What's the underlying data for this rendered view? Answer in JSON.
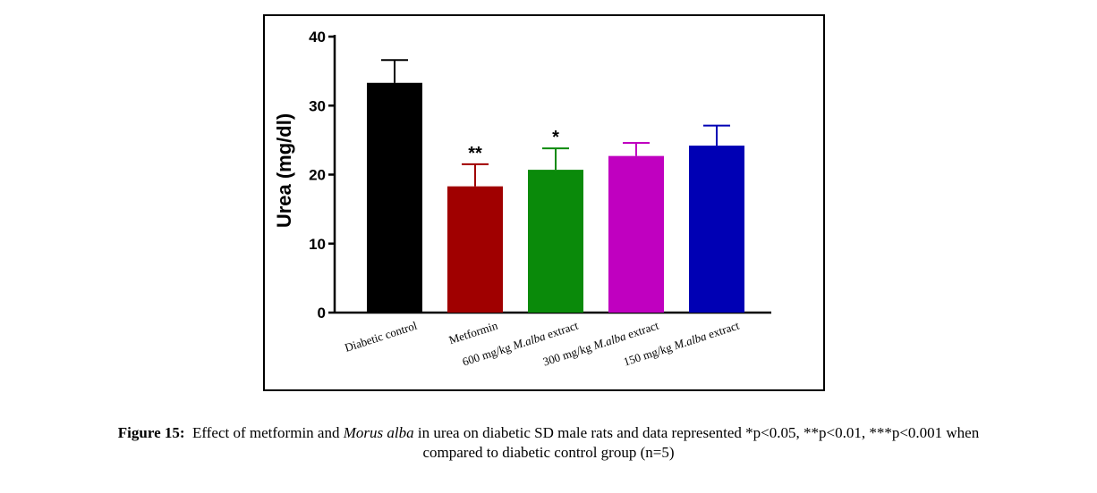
{
  "chart_data": {
    "type": "bar",
    "ylabel": "Urea (mg/dl)",
    "ylim": [
      0,
      40
    ],
    "yticks": [
      "0",
      "10",
      "20",
      "30",
      "40"
    ],
    "categories": [
      {
        "pre": "Diabetic control",
        "ital": "",
        "post": ""
      },
      {
        "pre": "Metformin",
        "ital": "",
        "post": ""
      },
      {
        "pre": "600 mg/kg ",
        "ital": "M.alba",
        "post": " extract"
      },
      {
        "pre": "300 mg/kg ",
        "ital": "M.alba",
        "post": " extract"
      },
      {
        "pre": "150 mg/kg ",
        "ital": "M.alba",
        "post": " extract"
      }
    ],
    "values": [
      33.3,
      18.3,
      20.7,
      22.7,
      24.2
    ],
    "errors": [
      3.3,
      3.2,
      3.1,
      1.9,
      2.9
    ],
    "annotations": [
      "",
      "**",
      "*",
      "",
      ""
    ],
    "colors": [
      "#000000",
      "#a00000",
      "#0a8a0a",
      "#c000c0",
      "#0000b4"
    ],
    "grid": false,
    "legend": "none"
  },
  "caption": {
    "label": "Figure 15:",
    "text_pre": "Effect of metformin and ",
    "text_italic": "Morus alba",
    "text_post": " in urea on diabetic SD male rats and data represented *p<0.05, **p<0.01, ***p<0.001 when",
    "line2": "compared to diabetic control group (n=5)"
  }
}
